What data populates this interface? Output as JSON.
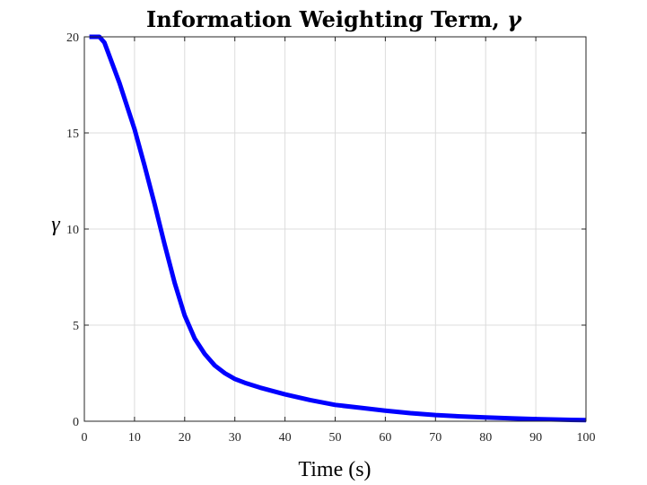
{
  "chart_data": {
    "type": "line",
    "title": "Information Weighting Term, ",
    "title_symbol": "γ",
    "xlabel": "Time (s)",
    "ylabel": "γ",
    "xlim": [
      0,
      100
    ],
    "ylim": [
      0,
      20
    ],
    "xticks": [
      0,
      10,
      20,
      30,
      40,
      50,
      60,
      70,
      80,
      90,
      100
    ],
    "yticks": [
      0,
      5,
      10,
      15,
      20
    ],
    "grid": true,
    "series": [
      {
        "color": "#0000ff",
        "x": [
          1,
          2,
          3,
          4,
          5,
          6,
          7,
          8,
          9,
          10,
          12,
          14,
          16,
          18,
          20,
          22,
          24,
          26,
          28,
          30,
          32,
          35,
          40,
          45,
          50,
          55,
          60,
          65,
          70,
          75,
          80,
          85,
          90,
          95,
          100
        ],
        "y": [
          20,
          20,
          20,
          19.7,
          19,
          18.3,
          17.6,
          16.8,
          16,
          15.2,
          13.3,
          11.3,
          9.2,
          7.2,
          5.5,
          4.3,
          3.5,
          2.9,
          2.5,
          2.2,
          2.0,
          1.75,
          1.4,
          1.1,
          0.85,
          0.7,
          0.55,
          0.42,
          0.32,
          0.25,
          0.2,
          0.15,
          0.11,
          0.08,
          0.06
        ]
      }
    ]
  }
}
